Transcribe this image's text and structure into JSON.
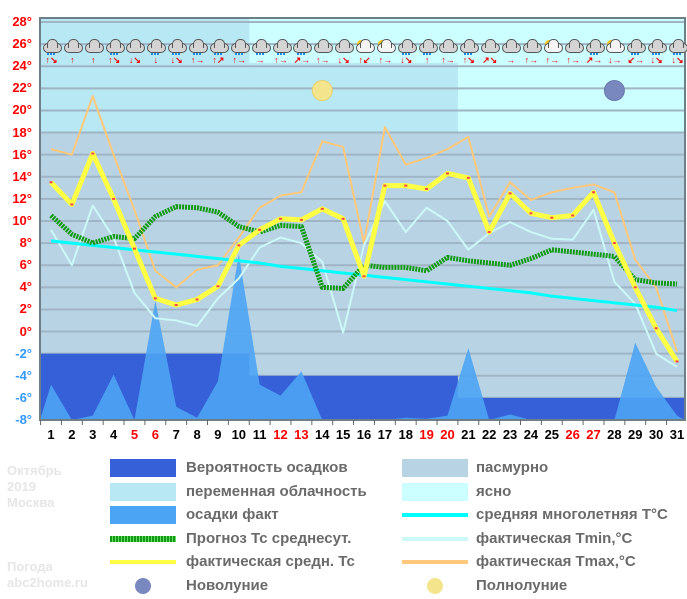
{
  "chart_data": {
    "type": "line",
    "month_label": "Октябрь",
    "year_label": "2019",
    "city_label": "Москва",
    "site_label_1": "Погода",
    "site_label_2": "abc2home.ru",
    "y_ticks": [
      "28°",
      "26°",
      "24°",
      "22°",
      "20°",
      "18°",
      "16°",
      "14°",
      "12°",
      "10°",
      "8°",
      "6°",
      "4°",
      "2°",
      "0°",
      "-2°",
      "-4°",
      "-6°",
      "-8°"
    ],
    "ylim": [
      -8,
      28
    ],
    "grid": true,
    "x": [
      "1",
      "2",
      "3",
      "4",
      "5",
      "6",
      "7",
      "8",
      "9",
      "10",
      "11",
      "12",
      "13",
      "14",
      "15",
      "16",
      "17",
      "18",
      "19",
      "20",
      "21",
      "22",
      "23",
      "24",
      "25",
      "26",
      "27",
      "28",
      "29",
      "30",
      "31"
    ],
    "weekend_days": [
      "5",
      "6",
      "12",
      "13",
      "19",
      "20",
      "26",
      "27"
    ],
    "colors": {
      "weekend": "#ff0000",
      "weekday": "#000000",
      "pos_tick": "#ff0000",
      "neg_tick": "#3399ff",
      "prob": "#3560d8",
      "variable": "#b8e8f4",
      "clear": "#ccffff",
      "overcast": "#b8d4e4",
      "precip": "#4ca4f4",
      "forecast": "#119911",
      "actual_avg": "#ffff44",
      "norm": "#00ffff",
      "tmin": "#ccf8f8",
      "tmax": "#ffc87a"
    },
    "series": [
      {
        "name": "фактическая Tmax,°C",
        "key": "tmax",
        "values": [
          16.5,
          16.0,
          21.3,
          16.0,
          11.0,
          5.5,
          4.0,
          5.6,
          6.0,
          8.5,
          11.2,
          12.3,
          12.6,
          17.2,
          16.7,
          8.0,
          18.5,
          15.1,
          15.7,
          16.5,
          17.6,
          10.4,
          13.5,
          11.9,
          12.6,
          13.0,
          13.3,
          12.6,
          6.5,
          4.0,
          -1.8
        ]
      },
      {
        "name": "фактическая Tmin,°C",
        "key": "tmin",
        "values": [
          9.2,
          6.0,
          11.4,
          8.5,
          3.5,
          1.2,
          1.0,
          0.5,
          3.0,
          4.8,
          7.6,
          8.5,
          8.0,
          6.3,
          -0.1,
          7.8,
          11.8,
          9.0,
          11.2,
          10.0,
          7.4,
          8.9,
          9.9,
          9.0,
          8.4,
          8.3,
          11.0,
          4.5,
          2.5,
          -2.0,
          -3.2
        ]
      },
      {
        "name": "средняя многолетняя T°C",
        "key": "norm",
        "values": [
          8.2,
          8.0,
          7.8,
          7.6,
          7.4,
          7.2,
          7.0,
          6.8,
          6.6,
          6.4,
          6.2,
          5.9,
          5.7,
          5.5,
          5.3,
          5.1,
          4.9,
          4.7,
          4.5,
          4.3,
          4.1,
          3.9,
          3.7,
          3.5,
          3.2,
          3.0,
          2.8,
          2.6,
          2.4,
          2.2,
          1.9
        ]
      },
      {
        "name": "Прогноз Тс среднесут.",
        "key": "forecast",
        "values": [
          10.5,
          8.8,
          8.0,
          8.6,
          8.4,
          10.4,
          11.3,
          11.2,
          10.8,
          9.5,
          9.0,
          9.6,
          9.5,
          4.0,
          3.9,
          6.0,
          5.8,
          5.8,
          5.5,
          6.7,
          6.4,
          6.2,
          6.0,
          6.6,
          7.4,
          7.2,
          7.0,
          6.8,
          4.7,
          4.4,
          4.3
        ]
      },
      {
        "name": "фактическая средн. Тс",
        "key": "actual_avg",
        "values": [
          13.5,
          11.5,
          16.1,
          12.0,
          7.5,
          3.0,
          2.4,
          2.9,
          4.1,
          7.8,
          9.2,
          10.2,
          10.1,
          11.1,
          10.2,
          5.0,
          13.2,
          13.2,
          12.9,
          14.3,
          13.9,
          9.0,
          12.5,
          10.7,
          10.3,
          10.5,
          12.6,
          8.0,
          4.0,
          0.3,
          -2.7
        ]
      }
    ],
    "precip_actual_levels": [
      -4.8,
      -8,
      -7.6,
      -3.9,
      -8,
      2.8,
      -6.8,
      -7.8,
      -4.5,
      7.0,
      -4.8,
      -5.8,
      -3.6,
      -8,
      -8,
      -8,
      -8,
      -7.8,
      -7.9,
      -7.6,
      -1.5,
      -8,
      -7.5,
      -8,
      -8,
      -8,
      -8,
      -8,
      -1.0,
      -5.0,
      -7.6
    ],
    "precip_probability_bands": [
      {
        "from_day": 1,
        "to_day": 10,
        "level": -2
      },
      {
        "from_day": 11,
        "to_day": 20,
        "level": -4
      },
      {
        "from_day": 21,
        "to_day": 31,
        "level": -6
      }
    ],
    "sky_periods": [
      {
        "from_day": 1,
        "to_day": 10,
        "sky": "переменная облачность"
      },
      {
        "from_day": 11,
        "to_day": 20,
        "sky": "переменная облачность"
      },
      {
        "from_day": 21,
        "to_day": 31,
        "sky": "ясно"
      }
    ],
    "moons": [
      {
        "day": 14,
        "type": "full"
      },
      {
        "day": 28,
        "type": "new"
      }
    ],
    "weather_icons": [
      "rain",
      "cloudy",
      "cloudy",
      "rain",
      "cloudy",
      "rain",
      "rain",
      "rain",
      "rain",
      "rain",
      "rain",
      "rain",
      "rain",
      "cloudy",
      "cloudy",
      "partly-sunny",
      "partly-sunny",
      "rain",
      "rain",
      "cloudy",
      "rain",
      "cloudy",
      "cloudy",
      "cloudy",
      "partly-sunny",
      "cloudy",
      "rain",
      "partly-sunny",
      "rain",
      "rain",
      "rain"
    ],
    "wind_arrows": [
      "↑↘",
      "↑",
      "↑",
      "↑↘",
      "↓↘",
      "↓",
      "↓↘",
      "↑→",
      "↑↗",
      "↑→",
      "→",
      "↑→",
      "↗→",
      "↑→",
      "↓↘",
      "↑↙",
      "↑→",
      "↓↘",
      "↑",
      "↑→",
      "↑↘",
      "↗↘",
      "→",
      "↑→",
      "↑→",
      "↑→",
      "↗→",
      "↓→",
      "↙→",
      "↓↘",
      "↓↘"
    ]
  },
  "legend": {
    "items": [
      {
        "label": "Вероятность осадков",
        "swatch": "prob"
      },
      {
        "label": "пасмурно",
        "swatch": "overcast"
      },
      {
        "label": "переменная облачность",
        "swatch": "variable"
      },
      {
        "label": "ясно",
        "swatch": "clear"
      },
      {
        "label": "осадки факт",
        "swatch": "precip"
      },
      {
        "label": "средняя многолетняя T°C",
        "swatch": "norm"
      },
      {
        "label": "Прогноз Тс среднесут.",
        "swatch": "forecast"
      },
      {
        "label": "фактическая Tmin,°C",
        "swatch": "tmin"
      },
      {
        "label": "фактическая средн. Тс",
        "swatch": "actual_avg"
      },
      {
        "label": "фактическая Tmax,°C",
        "swatch": "tmax"
      },
      {
        "label": "Новолуние",
        "swatch": "new-moon"
      },
      {
        "label": "Полнолуние",
        "swatch": "full-moon"
      }
    ]
  }
}
